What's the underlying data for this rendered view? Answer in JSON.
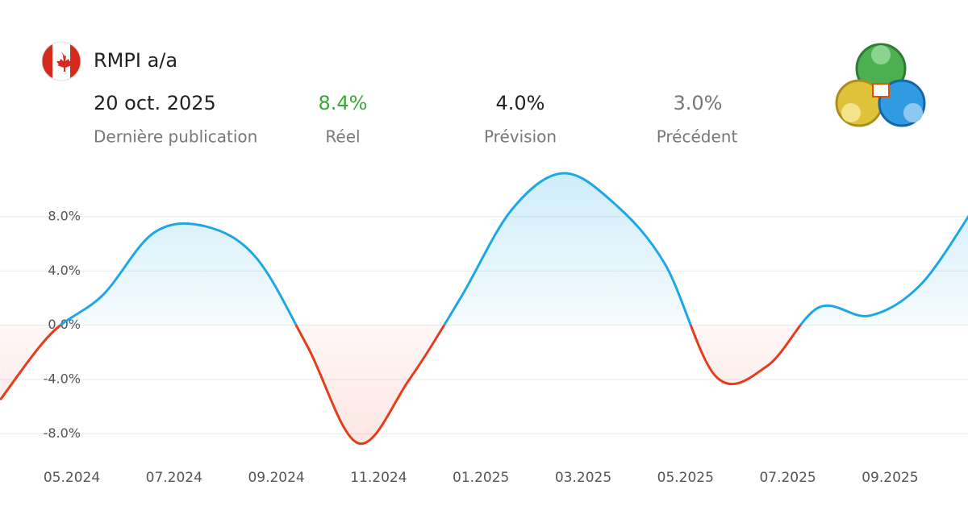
{
  "header": {
    "title": "RMPI a/a",
    "date": "20 oct. 2025",
    "date_label": "Dernière publication",
    "actual": "8.4%",
    "actual_label": "Réel",
    "forecast": "4.0%",
    "forecast_label": "Prévision",
    "previous": "3.0%",
    "previous_label": "Précédent"
  },
  "chart_data": {
    "type": "line",
    "categories": [
      null,
      null,
      "05.2024",
      null,
      "07.2024",
      null,
      "09.2024",
      null,
      "11.2024",
      null,
      "01.2025",
      null,
      "03.2025",
      null,
      "05.2025",
      null,
      "07.2025",
      null,
      "09.2025",
      null
    ],
    "series": [
      {
        "color": "#1ea7e4",
        "negative_color": "#e63c1e",
        "values": [
          -5.5,
          -0.6,
          2.2,
          6.8,
          7.3,
          5.0,
          -1.5,
          -8.7,
          -4.0,
          2.0,
          8.5,
          11.2,
          9.0,
          4.5,
          -3.8,
          -3.0,
          1.3,
          0.7,
          3.0,
          8.4
        ]
      }
    ],
    "ylim": [
      -10,
      11.5
    ],
    "yticks": [
      {
        "value": -8,
        "label": "-8.0%"
      },
      {
        "value": -4,
        "label": "-4.0%"
      },
      {
        "value": 0,
        "label": "0.0%"
      },
      {
        "value": 4,
        "label": "4.0%"
      },
      {
        "value": 8,
        "label": "8.0%"
      }
    ],
    "grid": true
  }
}
